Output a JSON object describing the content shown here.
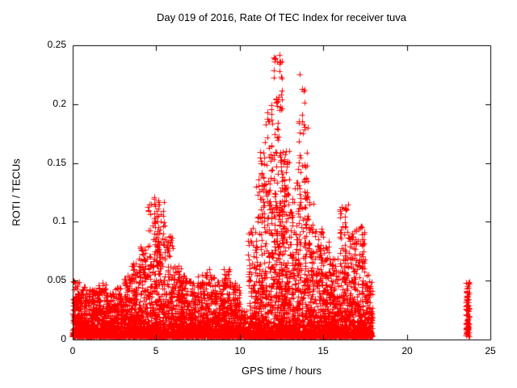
{
  "chart_data": {
    "type": "scatter",
    "title": "Day 019 of 2016, Rate Of TEC Index for receiver tuva",
    "xlabel": "GPS time / hours",
    "ylabel": "ROTI / TECUs",
    "xlim": [
      0,
      25
    ],
    "ylim": [
      0,
      0.25
    ],
    "xticks": [
      "0",
      "5",
      "10",
      "15",
      "20",
      "25"
    ],
    "yticks": [
      "0",
      "0.05",
      "0.1",
      "0.15",
      "0.2",
      "0.25"
    ],
    "grid": false,
    "legend": "none",
    "background": "#ffffff",
    "axis_color": "#000000",
    "text_color": "#000000",
    "marker": {
      "shape": "plus",
      "color": "#ff0000",
      "size": 7
    },
    "seed": 42,
    "series_bins": [
      {
        "x0": 0.0,
        "x1": 0.5,
        "n": 220,
        "ymax": 0.05,
        "p": 3.0
      },
      {
        "x0": 0.5,
        "x1": 1.0,
        "n": 220,
        "ymax": 0.045,
        "p": 3.0
      },
      {
        "x0": 1.0,
        "x1": 1.5,
        "n": 210,
        "ymax": 0.042,
        "p": 3.0
      },
      {
        "x0": 1.5,
        "x1": 2.0,
        "n": 210,
        "ymax": 0.048,
        "p": 3.0
      },
      {
        "x0": 2.0,
        "x1": 2.5,
        "n": 200,
        "ymax": 0.04,
        "p": 3.0
      },
      {
        "x0": 2.5,
        "x1": 3.0,
        "n": 200,
        "ymax": 0.045,
        "p": 3.0
      },
      {
        "x0": 3.0,
        "x1": 3.5,
        "n": 200,
        "ymax": 0.055,
        "p": 3.0
      },
      {
        "x0": 3.5,
        "x1": 4.0,
        "n": 210,
        "ymax": 0.07,
        "p": 3.3
      },
      {
        "x0": 4.0,
        "x1": 4.5,
        "n": 210,
        "ymax": 0.08,
        "p": 3.6
      },
      {
        "x0": 4.5,
        "x1": 5.0,
        "n": 220,
        "ymax": 0.12,
        "p": 4.2
      },
      {
        "x0": 5.0,
        "x1": 5.5,
        "n": 220,
        "ymax": 0.118,
        "p": 4.2
      },
      {
        "x0": 5.5,
        "x1": 6.0,
        "n": 210,
        "ymax": 0.09,
        "p": 3.8
      },
      {
        "x0": 6.0,
        "x1": 6.5,
        "n": 200,
        "ymax": 0.065,
        "p": 3.2
      },
      {
        "x0": 6.5,
        "x1": 7.0,
        "n": 200,
        "ymax": 0.055,
        "p": 3.0
      },
      {
        "x0": 7.0,
        "x1": 7.5,
        "n": 200,
        "ymax": 0.05,
        "p": 3.0
      },
      {
        "x0": 7.5,
        "x1": 8.0,
        "n": 200,
        "ymax": 0.055,
        "p": 3.0
      },
      {
        "x0": 8.0,
        "x1": 8.5,
        "n": 200,
        "ymax": 0.06,
        "p": 3.1
      },
      {
        "x0": 8.5,
        "x1": 9.0,
        "n": 200,
        "ymax": 0.05,
        "p": 3.0
      },
      {
        "x0": 9.0,
        "x1": 9.5,
        "n": 210,
        "ymax": 0.06,
        "p": 3.1
      },
      {
        "x0": 9.5,
        "x1": 10.0,
        "n": 200,
        "ymax": 0.048,
        "p": 3.0
      },
      {
        "x0": 10.0,
        "x1": 10.5,
        "n": 130,
        "ymax": 0.025,
        "p": 2.6
      },
      {
        "x0": 10.5,
        "x1": 11.0,
        "n": 210,
        "ymax": 0.095,
        "p": 3.8
      },
      {
        "x0": 11.0,
        "x1": 11.5,
        "n": 240,
        "ymax": 0.16,
        "p": 4.6
      },
      {
        "x0": 11.5,
        "x1": 12.0,
        "n": 250,
        "ymax": 0.2,
        "p": 4.8
      },
      {
        "x0": 12.0,
        "x1": 12.5,
        "n": 270,
        "ymax": 0.242,
        "p": 4.6
      },
      {
        "x0": 12.5,
        "x1": 13.0,
        "n": 270,
        "ymax": 0.16,
        "p": 4.0
      },
      {
        "x0": 13.0,
        "x1": 13.5,
        "n": 250,
        "ymax": 0.135,
        "p": 4.2
      },
      {
        "x0": 13.5,
        "x1": 14.0,
        "n": 250,
        "ymax": 0.215,
        "p": 4.8
      },
      {
        "x0": 14.0,
        "x1": 14.5,
        "n": 240,
        "ymax": 0.125,
        "p": 4.2
      },
      {
        "x0": 14.5,
        "x1": 15.0,
        "n": 220,
        "ymax": 0.095,
        "p": 3.8
      },
      {
        "x0": 15.0,
        "x1": 15.5,
        "n": 215,
        "ymax": 0.085,
        "p": 3.7
      },
      {
        "x0": 15.5,
        "x1": 16.0,
        "n": 210,
        "ymax": 0.07,
        "p": 3.4
      },
      {
        "x0": 16.0,
        "x1": 16.5,
        "n": 220,
        "ymax": 0.115,
        "p": 4.1
      },
      {
        "x0": 16.5,
        "x1": 17.0,
        "n": 215,
        "ymax": 0.095,
        "p": 3.8
      },
      {
        "x0": 17.0,
        "x1": 17.5,
        "n": 210,
        "ymax": 0.095,
        "p": 3.8
      },
      {
        "x0": 17.5,
        "x1": 17.95,
        "n": 170,
        "ymax": 0.055,
        "p": 3.0
      },
      {
        "x0": 23.55,
        "x1": 23.75,
        "n": 90,
        "ymax": 0.05,
        "p": 1.6
      }
    ],
    "spikes": [
      {
        "x": 4.9,
        "ymax": 0.121,
        "n": 18
      },
      {
        "x": 5.15,
        "ymax": 0.118,
        "n": 16
      },
      {
        "x": 5.05,
        "ymax": 0.1,
        "n": 12
      },
      {
        "x": 11.3,
        "ymax": 0.15,
        "n": 12
      },
      {
        "x": 11.9,
        "ymax": 0.196,
        "n": 12
      },
      {
        "x": 12.2,
        "ymax": 0.205,
        "n": 16
      },
      {
        "x": 12.38,
        "ymax": 0.242,
        "n": 26
      },
      {
        "x": 12.52,
        "ymax": 0.236,
        "n": 20
      },
      {
        "x": 12.7,
        "ymax": 0.152,
        "n": 14
      },
      {
        "x": 13.55,
        "ymax": 0.225,
        "n": 8
      },
      {
        "x": 13.9,
        "ymax": 0.212,
        "n": 16
      },
      {
        "x": 14.05,
        "ymax": 0.18,
        "n": 10
      },
      {
        "x": 16.3,
        "ymax": 0.112,
        "n": 14
      },
      {
        "x": 17.3,
        "ymax": 0.096,
        "n": 10
      }
    ]
  }
}
